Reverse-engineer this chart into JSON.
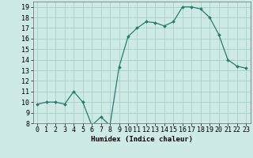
{
  "x": [
    0,
    1,
    2,
    3,
    4,
    5,
    6,
    7,
    8,
    9,
    10,
    11,
    12,
    13,
    14,
    15,
    16,
    17,
    18,
    19,
    20,
    21,
    22,
    23
  ],
  "y": [
    9.8,
    10.0,
    10.0,
    9.8,
    11.0,
    10.0,
    7.8,
    8.6,
    7.8,
    13.3,
    16.2,
    17.0,
    17.6,
    17.5,
    17.2,
    17.6,
    19.0,
    19.0,
    18.8,
    18.0,
    16.4,
    14.0,
    13.4,
    13.2
  ],
  "xlabel": "Humidex (Indice chaleur)",
  "ylim": [
    8,
    19.5
  ],
  "xlim": [
    -0.5,
    23.5
  ],
  "yticks": [
    8,
    9,
    10,
    11,
    12,
    13,
    14,
    15,
    16,
    17,
    18,
    19
  ],
  "xticks": [
    0,
    1,
    2,
    3,
    4,
    5,
    6,
    7,
    8,
    9,
    10,
    11,
    12,
    13,
    14,
    15,
    16,
    17,
    18,
    19,
    20,
    21,
    22,
    23
  ],
  "line_color": "#2d7a6e",
  "marker_color": "#2d7a6e",
  "bg_color": "#cdeae5",
  "grid_color": "#aacfca",
  "label_font_size": 6.5,
  "tick_font_size": 6.0
}
